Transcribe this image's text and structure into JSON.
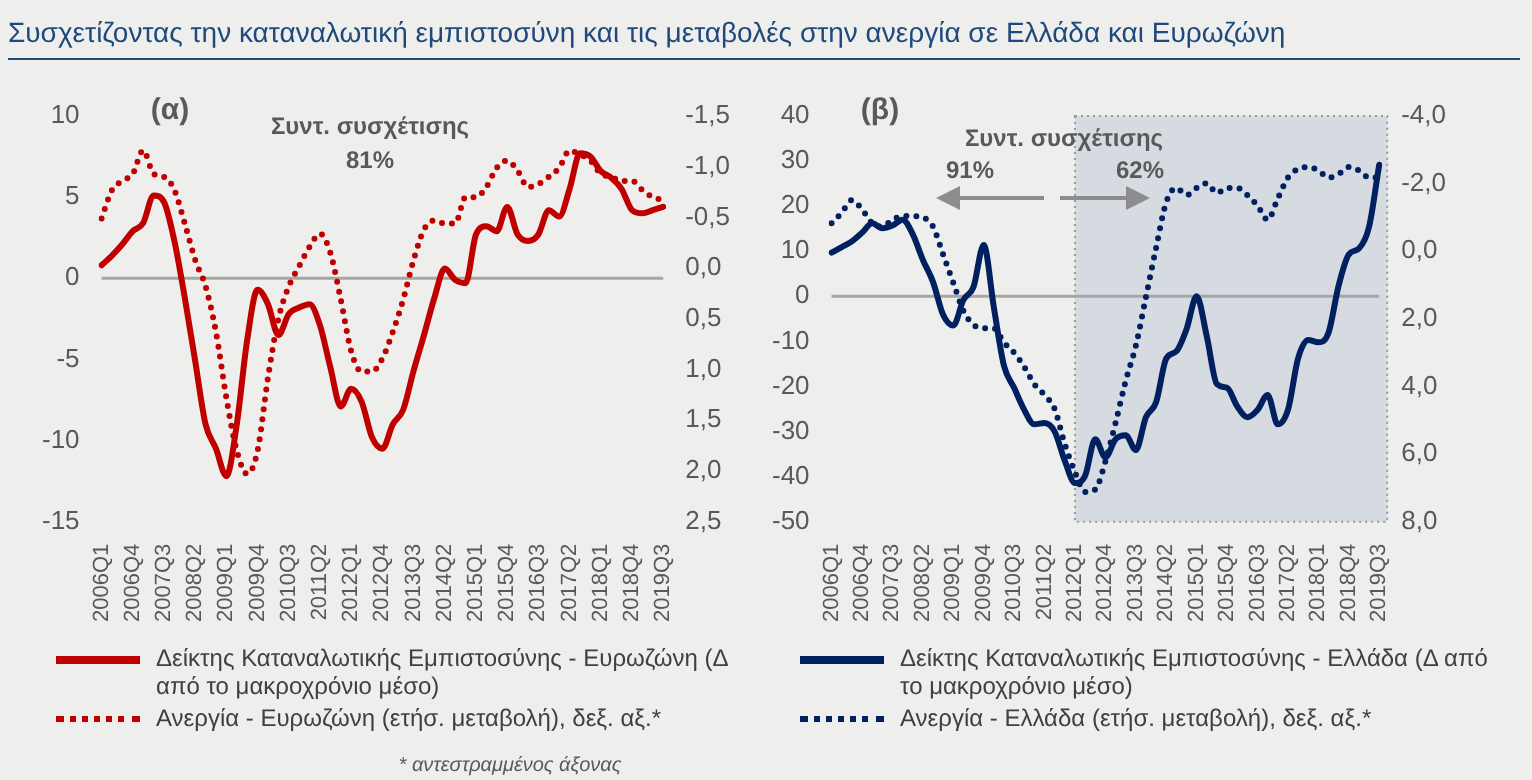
{
  "chart_data": [
    {
      "type": "line",
      "title": "Συσχετίζοντας την καταναλωτική εμπιστοσύνη και  τις μεταβολές στην ανεργία σε Ελλάδα και Ευρωζώνη",
      "categories": [
        "2006Q1",
        null,
        null,
        "2006Q4",
        null,
        null,
        "2007Q3",
        null,
        null,
        "2008Q2",
        null,
        null,
        "2009Q1",
        null,
        null,
        "2009Q4",
        null,
        null,
        "2010Q3",
        null,
        null,
        "2011Q2",
        null,
        null,
        "2012Q1",
        null,
        null,
        "2012Q4",
        null,
        null,
        "2013Q3",
        null,
        null,
        "2014Q2",
        null,
        null,
        "2015Q1",
        null,
        null,
        "2015Q4",
        null,
        null,
        "2016Q3",
        null,
        null,
        "2017Q2",
        null,
        null,
        "2018Q1",
        null,
        null,
        "2018Q4",
        null,
        null,
        "2019Q3"
      ],
      "series": [
        {
          "name": "Δείκτης Καταναλωτικής Εμπιστοσύνης - Ευρωζώνη (Δ από το μακροχρόνιο μέσο)",
          "color": "#c00000",
          "line_style": "solid",
          "values": [
            0.8,
            1.4,
            2.1,
            2.9,
            3.4,
            5.1,
            4.7,
            2.3,
            -1.2,
            -5.1,
            -9.0,
            -10.5,
            -12.2,
            -9.0,
            -3.8,
            -0.7,
            -1.6,
            -3.5,
            -2.2,
            -1.8,
            -1.6,
            -2.9,
            -5.5,
            -7.9,
            -6.8,
            -7.6,
            -9.8,
            -10.5,
            -9.0,
            -8.1,
            -5.7,
            -3.5,
            -1.2,
            0.6,
            -0.1,
            -0.3,
            2.7,
            3.2,
            2.9,
            4.4,
            2.7,
            2.3,
            2.7,
            4.2,
            3.8,
            5.5,
            7.7,
            7.5,
            6.6,
            6.2,
            5.5,
            4.2,
            4.0,
            4.2,
            4.4
          ]
        },
        {
          "name": "Ανεργία - Ευρωζώνη (ετήσ. μεταβολή), δεξ. αξ.*",
          "color": "#c00000",
          "line_style": "dotted",
          "axis": "y2",
          "values": [
            -0.49,
            -0.77,
            -0.86,
            -0.93,
            -1.16,
            -0.93,
            -0.9,
            -0.77,
            -0.44,
            -0.08,
            0.18,
            0.63,
            1.28,
            1.8,
            2.03,
            1.8,
            1.08,
            0.5,
            0.18,
            -0.02,
            -0.21,
            -0.34,
            -0.15,
            0.31,
            0.82,
            1.02,
            1.02,
            0.89,
            0.63,
            0.31,
            -0.08,
            -0.38,
            -0.47,
            -0.44,
            -0.44,
            -0.7,
            -0.7,
            -0.8,
            -0.99,
            -1.06,
            -0.96,
            -0.8,
            -0.83,
            -0.9,
            -0.99,
            -1.16,
            -1.12,
            -1.06,
            -0.93,
            -0.9,
            -0.86,
            -0.86,
            -0.77,
            -0.7,
            -0.67
          ]
        }
      ],
      "ylim": [
        -15,
        10
      ],
      "yticks": [
        -15,
        -10,
        -5,
        0,
        5,
        10
      ],
      "y2lim": [
        2.5,
        -1.5
      ],
      "y2ticks": [
        {
          "value": 2.5,
          "label": "2,5"
        },
        {
          "value": 2,
          "label": "2,0"
        },
        {
          "value": 1.5,
          "label": "1,5"
        },
        {
          "value": 1,
          "label": "1,0"
        },
        {
          "value": 0.5,
          "label": "0,5"
        },
        {
          "value": 0,
          "label": "0,0"
        },
        {
          "value": -0.5,
          "label": "-0,5"
        },
        {
          "value": -1,
          "label": "-1,0"
        },
        {
          "value": -1.5,
          "label": "-1,5"
        }
      ],
      "ref_lines": [
        {
          "axis": "y",
          "value": 0,
          "color": "#a6a6a6"
        }
      ],
      "annotations": [
        "(α)",
        "Συντ. συσχέτισης",
        "81%",
        "* αντεστραμμένος άξονας"
      ],
      "grid": false,
      "legend": "bottom",
      "marker": "none"
    },
    {
      "type": "line",
      "categories": [
        "2006Q1",
        null,
        null,
        "2006Q4",
        null,
        null,
        "2007Q3",
        null,
        null,
        "2008Q2",
        null,
        null,
        "2009Q1",
        null,
        null,
        "2009Q4",
        null,
        null,
        "2010Q3",
        null,
        null,
        "2011Q2",
        null,
        null,
        "2012Q1",
        null,
        null,
        "2012Q4",
        null,
        null,
        "2013Q3",
        null,
        null,
        "2014Q2",
        null,
        null,
        "2015Q1",
        null,
        null,
        "2015Q4",
        null,
        null,
        "2016Q3",
        null,
        null,
        "2017Q2",
        null,
        null,
        "2018Q1",
        null,
        null,
        "2018Q4",
        null,
        null,
        "2019Q3"
      ],
      "series": [
        {
          "name": "Δείκτης Καταναλωτικής Εμπιστοσύνης - Ελλάδα (Δ από το μακροχρόνιο μέσο)",
          "color": "#002060",
          "line_style": "solid",
          "values": [
            9.7,
            10.9,
            12.2,
            14.1,
            16.2,
            15.1,
            15.7,
            17.0,
            13.8,
            8.1,
            3.2,
            -4.1,
            -6.5,
            -0.8,
            2.1,
            11.4,
            -2.4,
            -15.4,
            -20.3,
            -25.2,
            -28.4,
            -28.1,
            -30.0,
            -36.5,
            -41.4,
            -39.8,
            -31.7,
            -35.7,
            -31.7,
            -30.8,
            -34.1,
            -26.8,
            -23.5,
            -13.8,
            -12.2,
            -7.3,
            0,
            -8.9,
            -19.5,
            -20.3,
            -24.4,
            -26.8,
            -25.2,
            -21.9,
            -28.4,
            -25.2,
            -13.8,
            -9.7,
            -10.2,
            -8.1,
            2.4,
            9.3,
            10.6,
            15.4,
            29.2
          ]
        },
        {
          "name": "Ανεργία - Ελλάδα (ετήσ. μεταβολή), δεξ. αξ.*",
          "color": "#002060",
          "line_style": "dotted",
          "axis": "y2",
          "values": [
            -0.83,
            -1.14,
            -1.51,
            -1.24,
            -0.83,
            -0.73,
            -0.93,
            -1.04,
            -1.04,
            -1.0,
            -0.73,
            0.1,
            0.93,
            1.76,
            2.18,
            2.28,
            2.28,
            2.7,
            3.0,
            3.42,
            3.94,
            4.25,
            4.67,
            5.71,
            6.54,
            7.12,
            7.05,
            6.22,
            5.08,
            3.84,
            2.8,
            1.35,
            -0.1,
            -1.45,
            -1.87,
            -1.66,
            -1.87,
            -2.01,
            -1.72,
            -1.87,
            -1.87,
            -1.66,
            -1.35,
            -0.93,
            -1.56,
            -2.18,
            -2.43,
            -2.49,
            -2.39,
            -2.18,
            -2.28,
            -2.49,
            -2.39,
            -2.18,
            -2.18
          ]
        }
      ],
      "ylim": [
        -50,
        40
      ],
      "yticks": [
        -50,
        -40,
        -30,
        -20,
        -10,
        0,
        10,
        20,
        30,
        40
      ],
      "y2lim": [
        8,
        -4
      ],
      "y2ticks": [
        {
          "value": 8,
          "label": "8,0"
        },
        {
          "value": 6,
          "label": "6,0"
        },
        {
          "value": 4,
          "label": "4,0"
        },
        {
          "value": 2,
          "label": "2,0"
        },
        {
          "value": 0,
          "label": "0,0"
        },
        {
          "value": -2,
          "label": "-2,0"
        },
        {
          "value": -4,
          "label": "-4,0"
        }
      ],
      "ref_lines": [
        {
          "axis": "y",
          "value": 0,
          "color": "#a6a6a6"
        }
      ],
      "bands": [
        {
          "axis": "x",
          "from": "2012Q1",
          "to": "2019Q3",
          "color": "#d6dae1"
        }
      ],
      "annotations": [
        "(β)",
        "Συντ. συσχέτισης",
        "91%",
        "62%"
      ],
      "grid": false,
      "legend": "bottom",
      "marker": "none"
    }
  ]
}
